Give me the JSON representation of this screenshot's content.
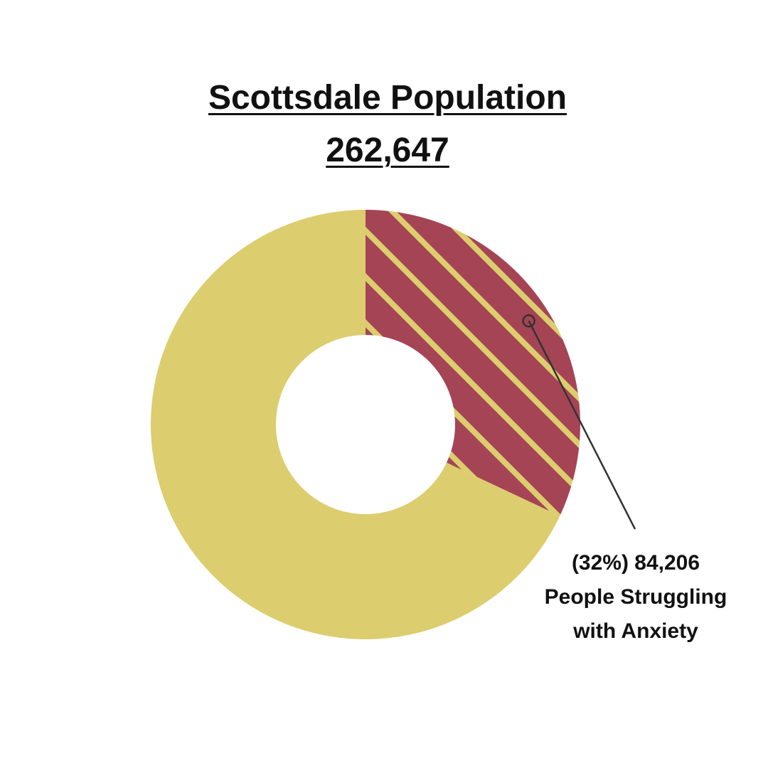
{
  "chart_data": {
    "type": "donut",
    "title": "Scottsdale Population",
    "subtitle": "262,647",
    "categories": [
      "People Struggling with Anxiety",
      null
    ],
    "values": [
      32,
      68
    ],
    "value_labels": [
      "(32%) 84,206",
      null
    ],
    "colors": [
      "#a54455",
      "#dccd6e"
    ],
    "hatch_color": "#dccd6e"
  }
}
